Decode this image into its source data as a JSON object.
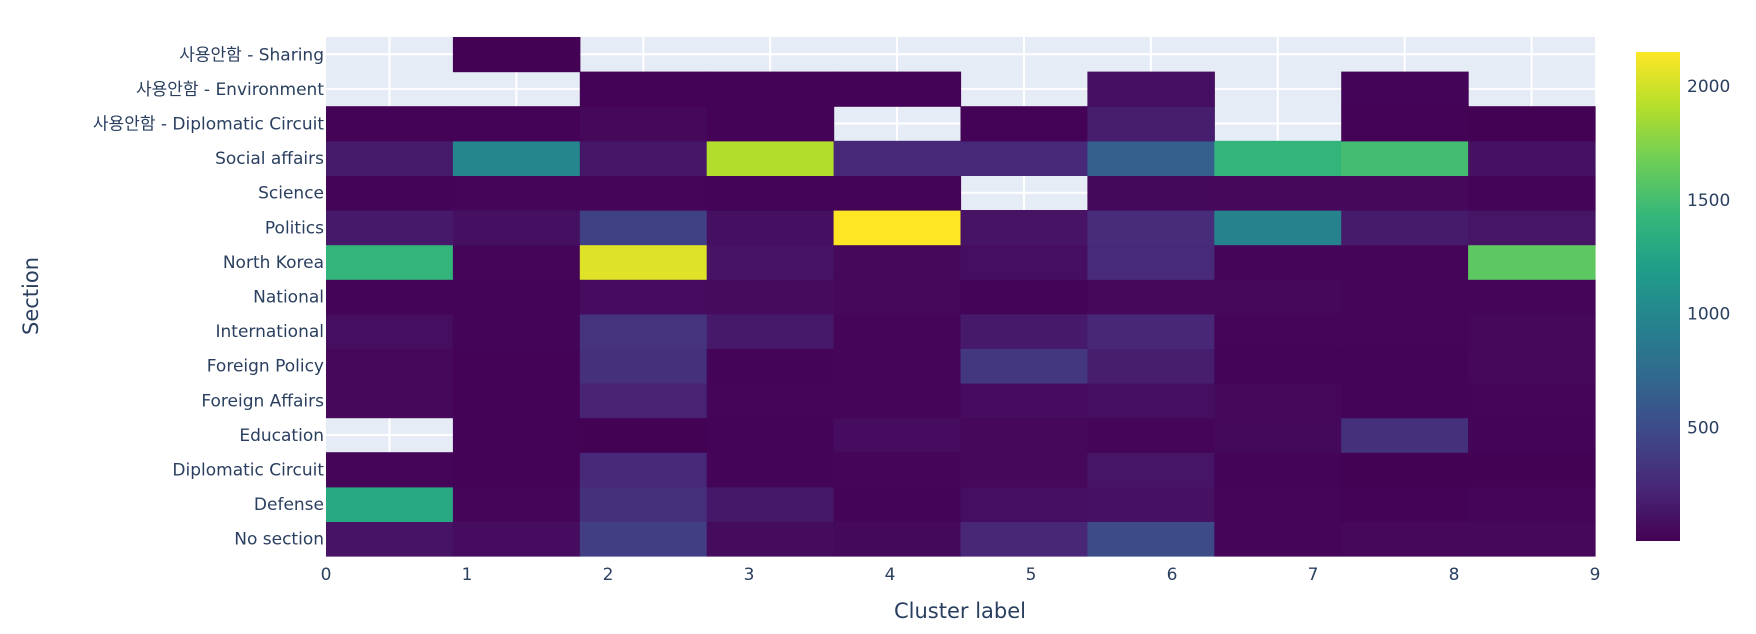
{
  "chart_data": {
    "type": "heatmap",
    "title": "",
    "xlabel": "Cluster label",
    "ylabel": "Section",
    "x": [
      0,
      1,
      2,
      3,
      4,
      5,
      6,
      7,
      8,
      9
    ],
    "x_tick_labels": [
      "0",
      "1",
      "2",
      "3",
      "4",
      "5",
      "6",
      "7",
      "8",
      "9"
    ],
    "y": [
      "No section",
      "Defense",
      "Diplomatic Circuit",
      "Education",
      "Foreign  Affairs",
      "Foreign Policy",
      "International",
      "National",
      "North Korea",
      "Politics",
      "Science",
      "Social affairs",
      "사용안함 - Diplomatic Circuit",
      "사용안함 - Environment",
      "사용안함 - Sharing"
    ],
    "z": [
      [
        110,
        70,
        400,
        60,
        50,
        230,
        500,
        30,
        40,
        40
      ],
      [
        1300,
        30,
        300,
        140,
        20,
        80,
        100,
        30,
        10,
        30
      ],
      [
        30,
        15,
        240,
        20,
        30,
        40,
        120,
        20,
        5,
        5
      ],
      [
        null,
        10,
        5,
        20,
        70,
        40,
        30,
        50,
        300,
        20
      ],
      [
        40,
        15,
        210,
        30,
        30,
        70,
        80,
        40,
        20,
        30
      ],
      [
        40,
        15,
        300,
        20,
        30,
        350,
        170,
        20,
        20,
        40
      ],
      [
        80,
        20,
        320,
        150,
        30,
        150,
        230,
        30,
        30,
        40
      ],
      [
        20,
        20,
        70,
        60,
        40,
        20,
        40,
        40,
        30,
        30
      ],
      [
        1400,
        30,
        2050,
        110,
        40,
        80,
        260,
        30,
        30,
        1600
      ],
      [
        150,
        90,
        420,
        90,
        2150,
        110,
        270,
        960,
        160,
        120
      ],
      [
        20,
        30,
        30,
        20,
        20,
        null,
        50,
        40,
        40,
        20
      ],
      [
        160,
        1000,
        130,
        1900,
        240,
        240,
        650,
        1400,
        1500,
        100
      ],
      [
        10,
        10,
        40,
        10,
        null,
        10,
        170,
        null,
        10,
        5
      ],
      [
        null,
        null,
        10,
        10,
        10,
        null,
        80,
        null,
        20,
        null
      ],
      [
        null,
        5,
        null,
        null,
        null,
        null,
        null,
        null,
        null,
        null
      ]
    ],
    "zmin": 0,
    "zmax": 2150,
    "colorscale": "Viridis",
    "colorbar": {
      "ticks": [
        500,
        1000,
        1500,
        2000
      ],
      "tick_labels": [
        "500",
        "1000",
        "1500",
        "2000"
      ]
    },
    "colors": {
      "plot_background": "#e5ecf6",
      "grid": "#ffffff",
      "text": "#2a3f5f",
      "missing": "#e5ecf6"
    },
    "viridis_stops": [
      "#440154",
      "#482878",
      "#3e4989",
      "#31688e",
      "#26828e",
      "#1f9e89",
      "#35b779",
      "#6ece58",
      "#b5de2b",
      "#fde725"
    ]
  }
}
